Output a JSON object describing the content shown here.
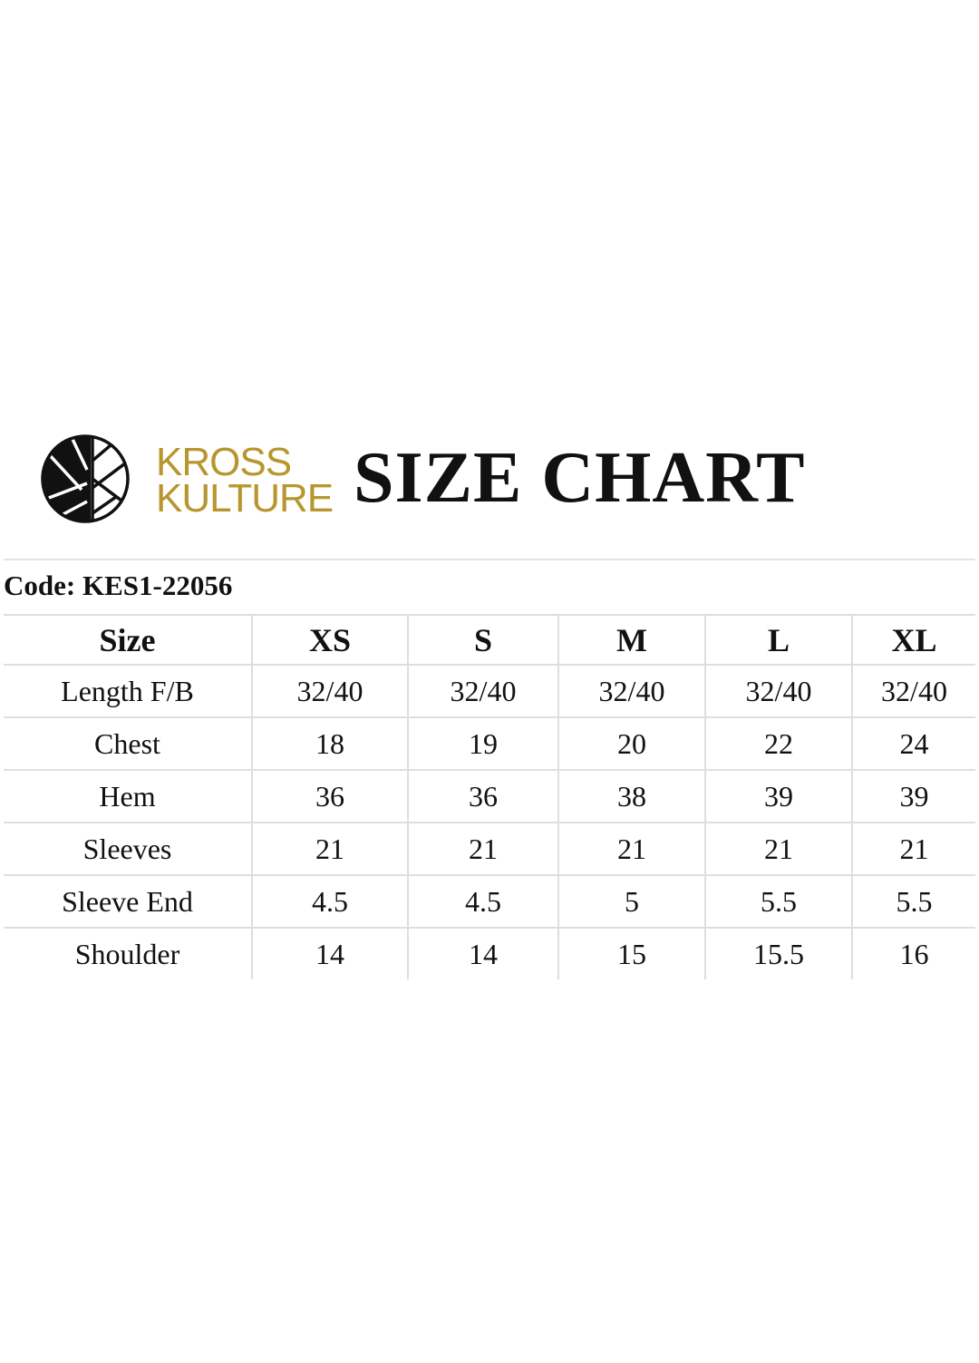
{
  "brand": {
    "line1": "KROSS",
    "line2": "KULTURE",
    "color": "#b8962e"
  },
  "title": "SIZE CHART",
  "code": "Code: KES1-22056",
  "table": {
    "headers": [
      "Size",
      "XS",
      "S",
      "M",
      "L",
      "XL"
    ],
    "rows": [
      [
        "Length F/B",
        "32/40",
        "32/40",
        "32/40",
        "32/40",
        "32/40"
      ],
      [
        "Chest",
        "18",
        "19",
        "20",
        "22",
        "24"
      ],
      [
        "Hem",
        "36",
        "36",
        "38",
        "39",
        "39"
      ],
      [
        "Sleeves",
        "21",
        "21",
        "21",
        "21",
        "21"
      ],
      [
        "Sleeve End",
        "4.5",
        "4.5",
        "5",
        "5.5",
        "5.5"
      ],
      [
        "Shoulder",
        "14",
        "14",
        "15",
        "15.5",
        "16"
      ]
    ]
  }
}
